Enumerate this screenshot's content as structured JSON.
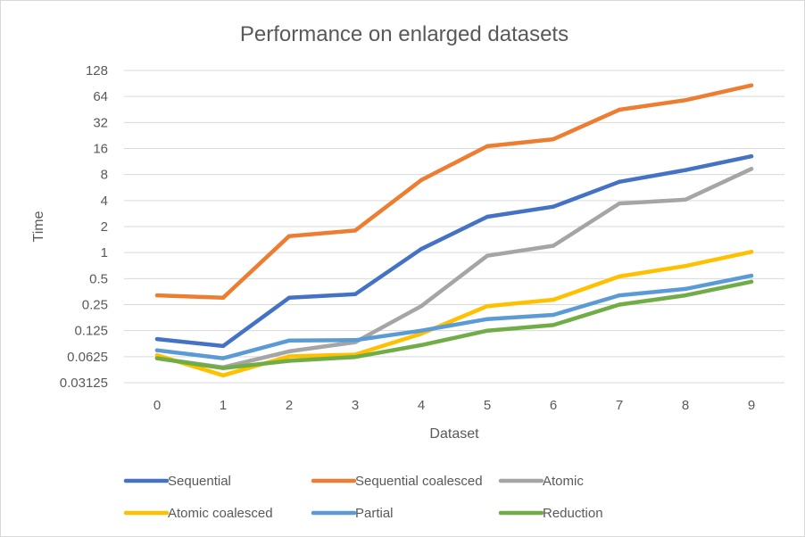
{
  "chart_data": {
    "type": "line",
    "title": "Performance on enlarged datasets",
    "xlabel": "Dataset",
    "ylabel": "Time",
    "yscale": "log2",
    "ylim": [
      0.03125,
      128
    ],
    "grid": true,
    "legend_position": "bottom",
    "categories": [
      "0",
      "1",
      "2",
      "3",
      "4",
      "5",
      "6",
      "7",
      "8",
      "9"
    ],
    "yticks": [
      "0.03125",
      "0.0625",
      "0.125",
      "0.25",
      "0.5",
      "1",
      "2",
      "4",
      "8",
      "16",
      "32",
      "64",
      "128"
    ],
    "series": [
      {
        "name": "Sequential",
        "color": "#4472C4",
        "values": [
          0.1,
          0.083,
          0.3,
          0.33,
          1.1,
          2.6,
          3.4,
          6.6,
          9.0,
          13.0
        ]
      },
      {
        "name": "Sequential coalesced",
        "color": "#ED7D31",
        "values": [
          0.32,
          0.3,
          1.55,
          1.8,
          6.9,
          17.0,
          20.5,
          45.0,
          58.0,
          86.0
        ]
      },
      {
        "name": "Atomic",
        "color": "#A5A5A5",
        "values": [
          0.06,
          0.047,
          0.072,
          0.092,
          0.24,
          0.92,
          1.2,
          3.7,
          4.1,
          9.3
        ]
      },
      {
        "name": "Atomic coalesced",
        "color": "#FFC000",
        "values": [
          0.065,
          0.038,
          0.063,
          0.066,
          0.115,
          0.24,
          0.285,
          0.53,
          0.7,
          1.02
        ]
      },
      {
        "name": "Partial",
        "color": "#5B9BD5",
        "values": [
          0.074,
          0.06,
          0.096,
          0.097,
          0.125,
          0.17,
          0.19,
          0.32,
          0.38,
          0.54
        ]
      },
      {
        "name": "Reduction",
        "color": "#70AD47",
        "values": [
          0.06,
          0.046,
          0.056,
          0.062,
          0.085,
          0.125,
          0.145,
          0.25,
          0.32,
          0.46
        ]
      }
    ]
  }
}
